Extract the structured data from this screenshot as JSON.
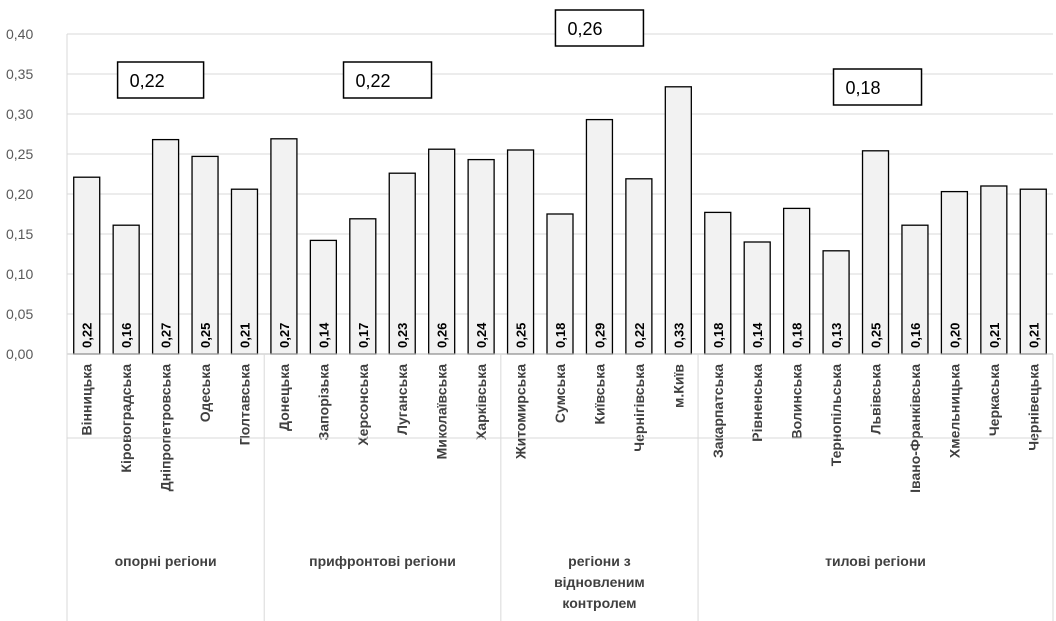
{
  "chart_data": {
    "type": "bar",
    "ylim": [
      0,
      0.4
    ],
    "yticks": [
      "0,00",
      "0,05",
      "0,10",
      "0,15",
      "0,20",
      "0,25",
      "0,30",
      "0,35",
      "0,40"
    ],
    "grid": true,
    "colors": {
      "bar_fill": "#f2f2f2",
      "bar_stroke": "#000000",
      "grid": "#d9d9d9"
    },
    "categories": [
      "Вінницька",
      "Кіровоградська",
      "Дніпропетровська",
      "Одеська",
      "Полтавська",
      "Донецька",
      "Запорізька",
      "Херсонська",
      "Луганська",
      "Миколаївська",
      "Харківська",
      "Житомирська",
      "Сумська",
      "Київська",
      "Чернігівська",
      "м.Київ",
      "Закарпатська",
      "Рівненська",
      "Волинська",
      "Тернопільська",
      "Львівська",
      "Івано-Франківська",
      "Хмельницька",
      "Черкаська",
      "Чернівецька"
    ],
    "values": [
      0.221,
      0.161,
      0.268,
      0.247,
      0.206,
      0.269,
      0.142,
      0.169,
      0.226,
      0.256,
      0.243,
      0.255,
      0.175,
      0.293,
      0.219,
      0.334,
      0.177,
      0.14,
      0.182,
      0.129,
      0.254,
      0.161,
      0.203,
      0.21,
      0.206
    ],
    "data_labels": [
      "0,22",
      "0,16",
      "0,27",
      "0,25",
      "0,21",
      "0,27",
      "0,14",
      "0,17",
      "0,23",
      "0,26",
      "0,24",
      "0,25",
      "0,18",
      "0,29",
      "0,22",
      "0,33",
      "0,18",
      "0,14",
      "0,18",
      "0,13",
      "0,25",
      "0,16",
      "0,20",
      "0,21",
      "0,21"
    ],
    "groups": [
      {
        "label_lines": [
          "опорні регіони"
        ],
        "count": 5,
        "average_label": "0,22"
      },
      {
        "label_lines": [
          "прифронтові регіони"
        ],
        "count": 6,
        "average_label": "0,22"
      },
      {
        "label_lines": [
          "регіони з",
          "відновленим",
          "контролем"
        ],
        "count": 5,
        "average_label": "0,26"
      },
      {
        "label_lines": [
          "тилові регіони"
        ],
        "count": 9,
        "average_label": "0,18"
      }
    ]
  }
}
